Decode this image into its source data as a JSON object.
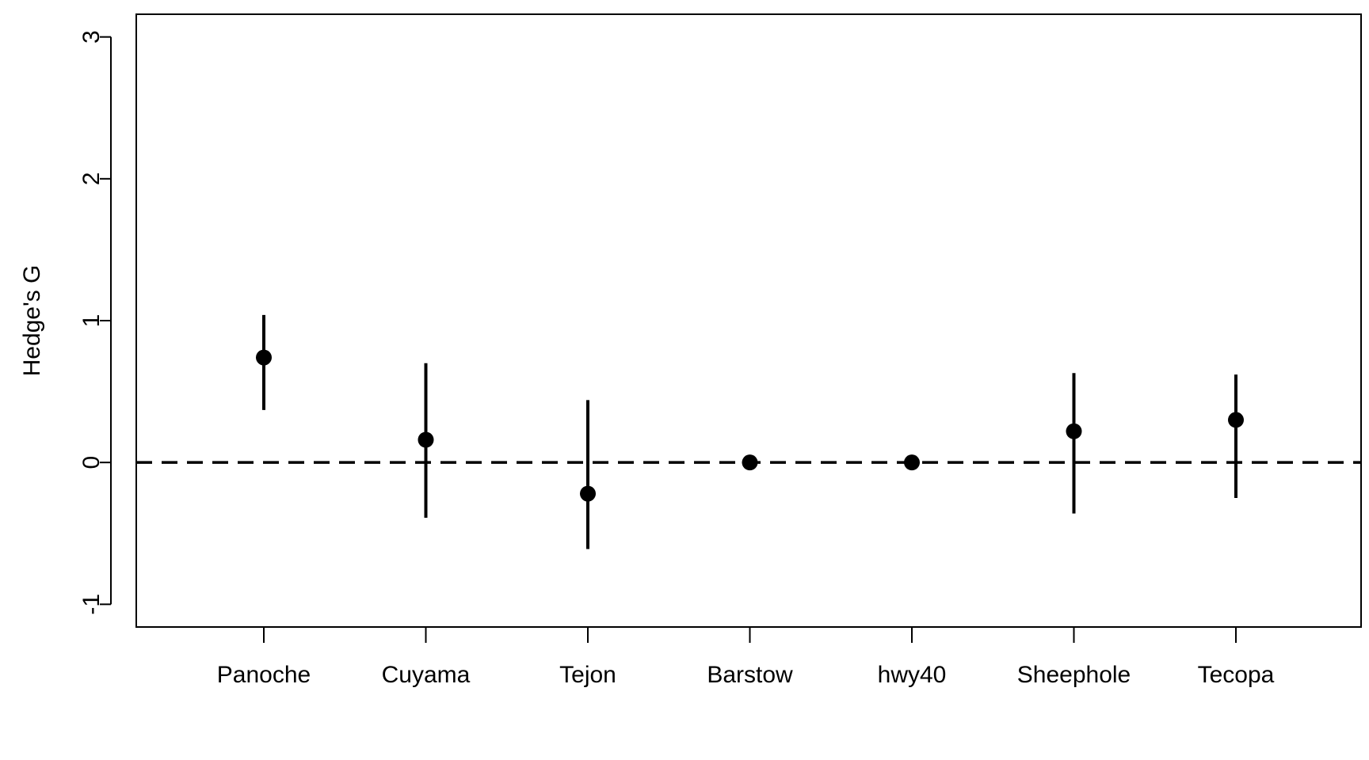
{
  "chart_data": {
    "type": "scatter",
    "subtype": "point-with-error-bars",
    "title": "",
    "xlabel": "",
    "ylabel": "Hedge's G",
    "categories": [
      "Panoche",
      "Cuyama",
      "Tejon",
      "Barstow",
      "hwy40",
      "Sheephole",
      "Tecopa"
    ],
    "values": [
      0.74,
      0.16,
      -0.22,
      0.0,
      0.0,
      0.22,
      0.3
    ],
    "lower": [
      0.37,
      -0.39,
      -0.61,
      null,
      null,
      -0.36,
      -0.25
    ],
    "upper": [
      1.04,
      0.7,
      0.44,
      null,
      null,
      0.63,
      0.62
    ],
    "ylim": [
      -1.16,
      3.16
    ],
    "yticks": [
      -1,
      0,
      1,
      2,
      3
    ],
    "ytick_labels": [
      "-1",
      "0",
      "1",
      "2",
      "3"
    ],
    "reference_line": {
      "y": 0,
      "style": "dashed"
    },
    "grid": false,
    "legend": "none",
    "colors": {
      "marks": "#000000",
      "axes": "#000000",
      "background": "#ffffff"
    }
  }
}
